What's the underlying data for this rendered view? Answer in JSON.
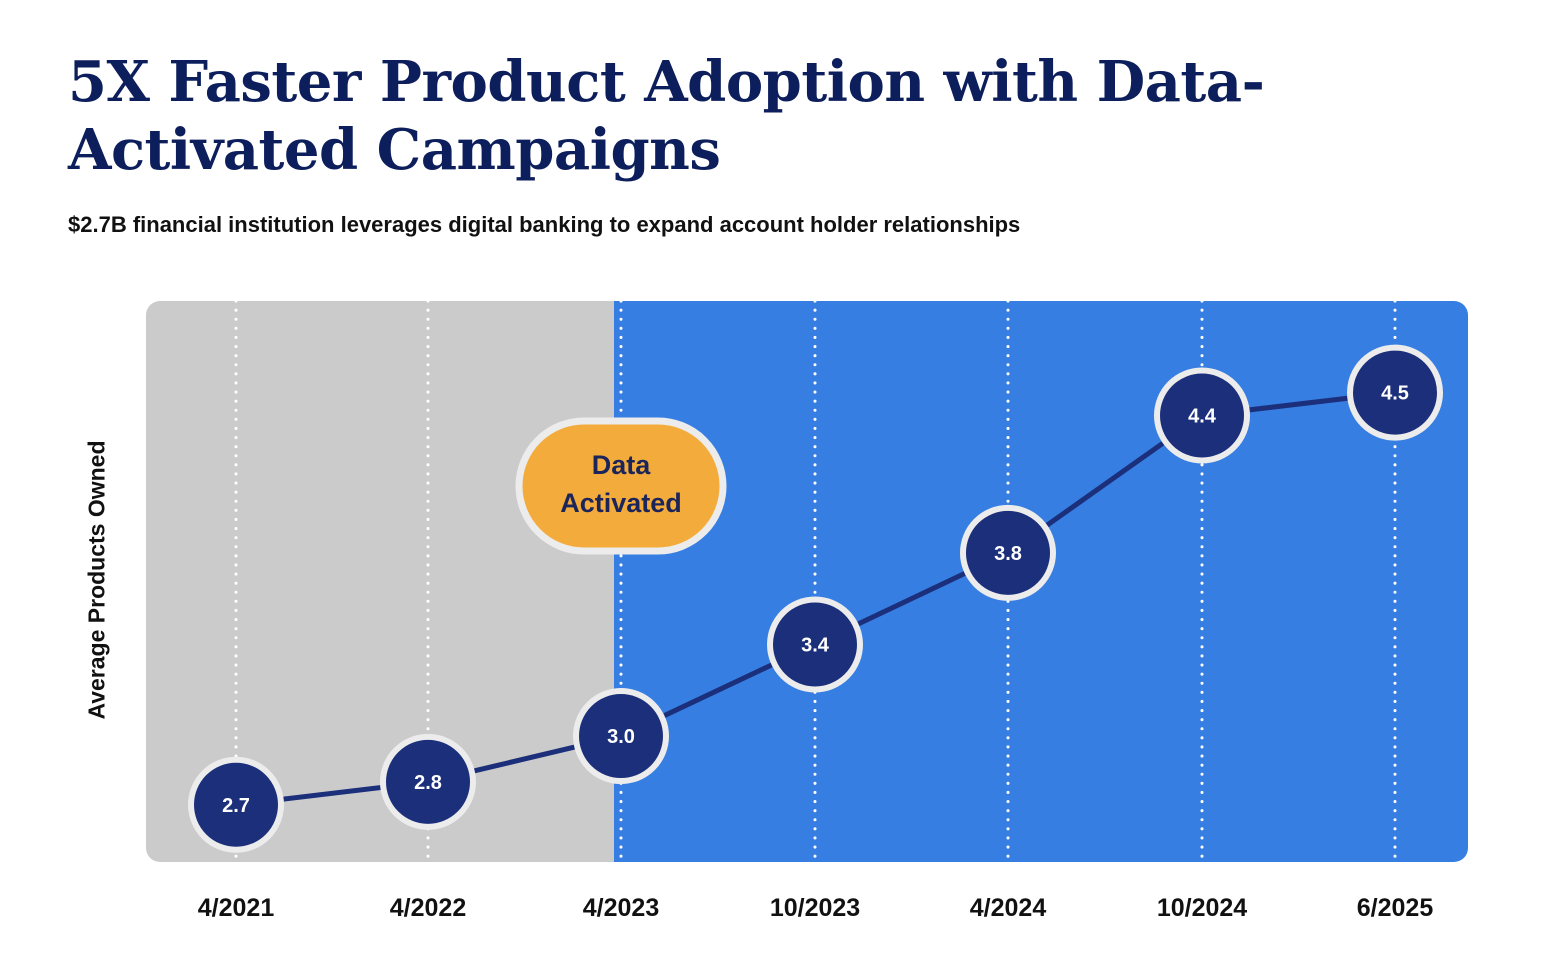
{
  "chart_data": {
    "type": "line",
    "title": "5X Faster Product Adoption with Data-Activated Campaigns",
    "subtitle": "$2.7B financial institution leverages digital banking to expand account holder relationships",
    "xlabel": "",
    "ylabel": "Average Products Owned",
    "categories": [
      "4/2021",
      "4/2022",
      "4/2023",
      "10/2023",
      "4/2024",
      "10/2024",
      "6/2025"
    ],
    "series": [
      {
        "values": [
          2.7,
          2.8,
          3.0,
          3.4,
          3.8,
          4.4,
          4.5
        ]
      }
    ],
    "data_labels": [
      "2.7",
      "2.8",
      "3.0",
      "3.4",
      "3.8",
      "4.4",
      "4.5"
    ],
    "ylim": [
      2.45,
      4.9
    ],
    "grid": "vertical dotted",
    "legend": "none",
    "annotation": {
      "line1": "Data",
      "line2": "Activated",
      "at_category": "4/2023"
    },
    "colors": {
      "title": "#0c1e5b",
      "before_band": "#cbcbcb",
      "after_band": "#377ee3",
      "line": "#1b2f7b",
      "marker_fill": "#1b2f7b",
      "marker_ring": "#ececec",
      "badge_fill": "#f3ac3c",
      "badge_ring": "#ececec"
    }
  }
}
